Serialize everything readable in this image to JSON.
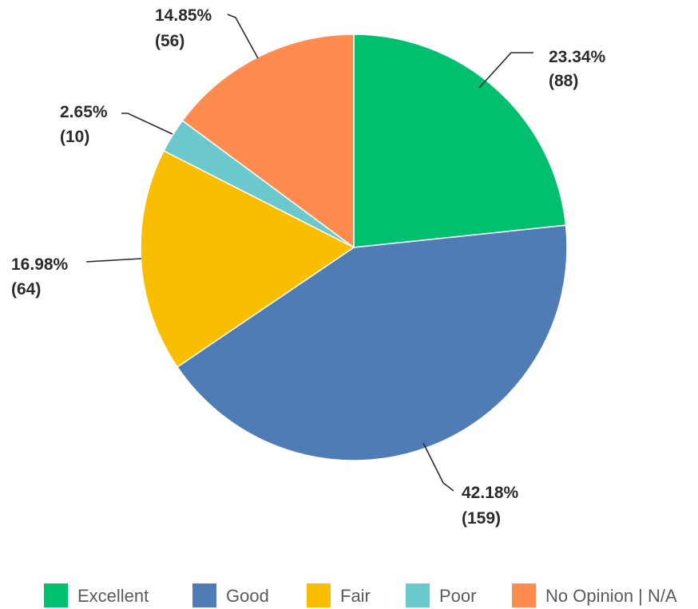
{
  "chart_data": {
    "type": "pie",
    "title": "",
    "categories": [
      "Excellent",
      "Good",
      "Fair",
      "Poor",
      "No Opinion | N/A"
    ],
    "values": [
      88,
      159,
      64,
      10,
      56
    ],
    "percent_labels": [
      "23.34%",
      "42.18%",
      "16.98%",
      "2.65%",
      "14.85%"
    ],
    "count_labels": [
      "(88)",
      "(159)",
      "(64)",
      "(10)",
      "(56)"
    ],
    "colors": [
      "#00BF6F",
      "#507CB6",
      "#F9BE00",
      "#6BC8CD",
      "#FF8B4F"
    ],
    "start_angle_deg": 0,
    "direction": "clockwise",
    "legend_placement": "bottom"
  }
}
